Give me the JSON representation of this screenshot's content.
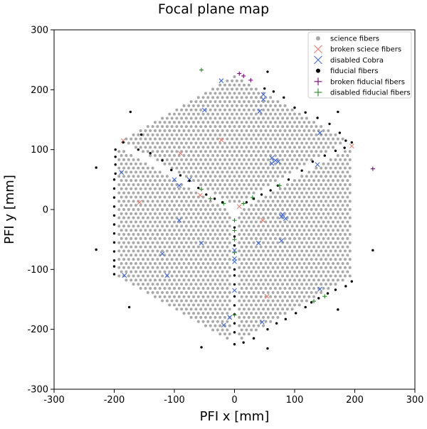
{
  "chart_data": {
    "type": "scatter",
    "title": "Focal plane map",
    "xlabel": "PFI x [mm]",
    "ylabel": "PFI y [mm]",
    "xlim": [
      -300,
      300
    ],
    "ylim": [
      -300,
      300
    ],
    "xticks": [
      -300,
      -200,
      -100,
      0,
      100,
      200,
      300
    ],
    "yticks": [
      -300,
      -200,
      -100,
      0,
      100,
      200,
      300
    ],
    "grid": false,
    "legend_position": "top-right",
    "science_field": {
      "shape": "hexagon",
      "vertices": [
        [
          -195,
          112
        ],
        [
          0,
          225
        ],
        [
          195,
          112
        ],
        [
          195,
          -112
        ],
        [
          0,
          -225
        ],
        [
          -195,
          -112
        ]
      ],
      "sector_gaps": [
        [
          [
            0,
            -225
          ],
          [
            0,
            0
          ]
        ],
        [
          [
            0,
            0
          ],
          [
            -195,
            112
          ]
        ],
        [
          [
            0,
            0
          ],
          [
            195,
            112
          ]
        ]
      ],
      "fiber_pitch": 8.0
    },
    "series": [
      {
        "name": "science fibers",
        "marker": "dot",
        "color": "#a8a8a8",
        "points": "regular grid filling science_field"
      },
      {
        "name": "broken sciece fibers",
        "marker": "x",
        "color": "#f08070",
        "points": [
          [
            -185,
            115
          ],
          [
            -158,
            12
          ],
          [
            -90,
            94
          ],
          [
            -57,
            24
          ],
          [
            -22,
            116
          ],
          [
            8,
            5
          ],
          [
            47,
            -18
          ],
          [
            54,
            -145
          ],
          [
            195,
            106
          ]
        ]
      },
      {
        "name": "disabled Cobra",
        "marker": "x",
        "color": "#4169e1",
        "points": [
          [
            -22,
            215
          ],
          [
            -50,
            166
          ],
          [
            48,
            192
          ],
          [
            48,
            184
          ],
          [
            42,
            164
          ],
          [
            62,
            86
          ],
          [
            68,
            82
          ],
          [
            62,
            77
          ],
          [
            73,
            80
          ],
          [
            -188,
            62
          ],
          [
            -100,
            50
          ],
          [
            -75,
            50
          ],
          [
            -92,
            40
          ],
          [
            -92,
            -18
          ],
          [
            -120,
            -74
          ],
          [
            -55,
            -56
          ],
          [
            -183,
            -110
          ],
          [
            -112,
            -110
          ],
          [
            0,
            -68
          ],
          [
            0,
            -82
          ],
          [
            0,
            -87
          ],
          [
            0,
            -135
          ],
          [
            -18,
            -193
          ],
          [
            -8,
            -180
          ],
          [
            40,
            -56
          ],
          [
            78,
            -52
          ],
          [
            80,
            -8
          ],
          [
            78,
            -12
          ],
          [
            85,
            -15
          ],
          [
            46,
            -188
          ],
          [
            142,
            128
          ],
          [
            138,
            75
          ],
          [
            142,
            -133
          ]
        ]
      },
      {
        "name": "fiducial fibers",
        "marker": "dot",
        "color": "#000000",
        "points": [
          [
            55,
            230
          ],
          [
            50,
            202
          ],
          [
            65,
            197
          ],
          [
            82,
            187
          ],
          [
            100,
            170
          ],
          [
            118,
            162
          ],
          [
            138,
            153
          ],
          [
            158,
            143
          ],
          [
            172,
            163
          ],
          [
            175,
            128
          ],
          [
            185,
            115
          ],
          [
            195,
            112
          ],
          [
            183,
            103
          ],
          [
            168,
            98
          ],
          [
            150,
            90
          ],
          [
            130,
            80
          ],
          [
            112,
            65
          ],
          [
            90,
            50
          ],
          [
            72,
            40
          ],
          [
            60,
            32
          ],
          [
            45,
            25
          ],
          [
            32,
            18
          ],
          [
            20,
            12
          ],
          [
            -173,
            163
          ],
          [
            -155,
            125
          ],
          [
            -185,
            112
          ],
          [
            -198,
            100
          ],
          [
            -198,
            88
          ],
          [
            -198,
            75
          ],
          [
            -198,
            60
          ],
          [
            -200,
            50
          ],
          [
            -200,
            35
          ],
          [
            -200,
            20
          ],
          [
            -200,
            5
          ],
          [
            -200,
            -10
          ],
          [
            -200,
            -25
          ],
          [
            -200,
            -40
          ],
          [
            -200,
            -55
          ],
          [
            -200,
            -70
          ],
          [
            -200,
            -85
          ],
          [
            -200,
            -95
          ],
          [
            -200,
            -108
          ],
          [
            -230,
            70
          ],
          [
            -230,
            -67
          ],
          [
            -160,
            100
          ],
          [
            -140,
            94
          ],
          [
            -120,
            82
          ],
          [
            -105,
            66
          ],
          [
            -90,
            57
          ],
          [
            -75,
            48
          ],
          [
            -60,
            36
          ],
          [
            -47,
            25
          ],
          [
            -33,
            18
          ],
          [
            -20,
            12
          ],
          [
            0,
            -30
          ],
          [
            0,
            -45
          ],
          [
            0,
            -60
          ],
          [
            0,
            -100
          ],
          [
            0,
            -110
          ],
          [
            0,
            -125
          ],
          [
            0,
            -145
          ],
          [
            0,
            -160
          ],
          [
            0,
            -175
          ],
          [
            0,
            -190
          ],
          [
            0,
            -205
          ],
          [
            0,
            -225
          ],
          [
            15,
            -222
          ],
          [
            32,
            -215
          ],
          [
            55,
            -232
          ],
          [
            55,
            -200
          ],
          [
            70,
            -190
          ],
          [
            85,
            -183
          ],
          [
            102,
            -173
          ],
          [
            118,
            -163
          ],
          [
            128,
            -155
          ],
          [
            140,
            -148
          ],
          [
            155,
            -140
          ],
          [
            168,
            -134
          ],
          [
            172,
            -167
          ],
          [
            185,
            -128
          ],
          [
            195,
            -120
          ],
          [
            230,
            -68
          ],
          [
            -55,
            -230
          ],
          [
            -175,
            -163
          ]
        ]
      },
      {
        "name": "broken fiducial fibers",
        "marker": "plus",
        "color": "#800080",
        "points": [
          [
            8,
            227
          ],
          [
            15,
            223
          ],
          [
            27,
            216
          ],
          [
            230,
            68
          ]
        ]
      },
      {
        "name": "disabled fiducial fibers",
        "marker": "plus",
        "color": "#228b22",
        "points": [
          [
            -55,
            233
          ],
          [
            -55,
            34
          ],
          [
            -40,
            18
          ],
          [
            -18,
            10
          ],
          [
            0,
            -18
          ],
          [
            0,
            -35
          ],
          [
            0,
            -50
          ],
          [
            0,
            -72
          ],
          [
            0,
            -176
          ],
          [
            15,
            10
          ],
          [
            30,
            20
          ],
          [
            75,
            40
          ],
          [
            132,
            -153
          ],
          [
            150,
            -145
          ]
        ]
      }
    ]
  }
}
